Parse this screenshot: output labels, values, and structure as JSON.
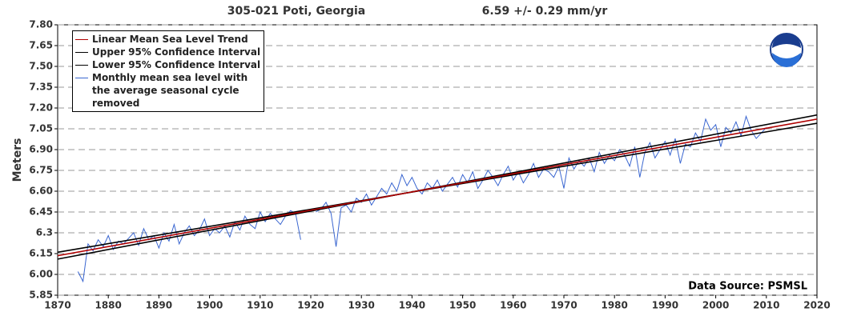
{
  "chart_data": {
    "type": "line",
    "title": "305-021 Poti, Georgia",
    "subtitle": "6.59 +/-  0.29 mm/yr",
    "y_label": "Meters",
    "annotation": "Data Source: PSMSL",
    "xlim": [
      1870,
      2020
    ],
    "xticks": [
      1870,
      1880,
      1890,
      1900,
      1910,
      1920,
      1930,
      1940,
      1950,
      1960,
      1970,
      1980,
      1990,
      2000,
      2010,
      2020
    ],
    "ylim": [
      5.85,
      7.8
    ],
    "yticks": [
      5.85,
      {
        "value": 6,
        "label": "6.00"
      },
      6.15,
      6.3,
      6.45,
      {
        "value": 6.6,
        "label": "6.60"
      },
      6.75,
      {
        "value": 6.9,
        "label": "6.90"
      },
      7.05,
      {
        "value": 7.2,
        "label": "7.20"
      },
      7.35,
      {
        "value": 7.5,
        "label": "7.50"
      },
      7.65,
      {
        "value": 7.8,
        "label": "7.80"
      }
    ],
    "grid": true,
    "series": [
      {
        "name": "Linear Mean Sea Level Trend",
        "color": "#b00000",
        "x": [
          1870,
          2020
        ],
        "values": [
          6.135,
          7.12
        ]
      },
      {
        "name": "Upper 95% Confidence Interval",
        "color": "#000000",
        "x": [
          1870,
          2020
        ],
        "values": [
          6.11,
          7.15
        ]
      },
      {
        "name": "Lower 95% Confidence Interval",
        "color": "#000000",
        "x": [
          1870,
          2020
        ],
        "values": [
          6.16,
          7.09
        ]
      },
      {
        "name": "Monthly mean sea level with the average seasonal cycle removed",
        "color": "#3a66d0",
        "x": [
          1874,
          1875,
          1876,
          1877,
          1878,
          1879,
          1880,
          1881,
          1882,
          1883,
          1884,
          1885,
          1886,
          1887,
          1888,
          1889,
          1890,
          1891,
          1892,
          1893,
          1894,
          1895,
          1896,
          1897,
          1898,
          1899,
          1900,
          1901,
          1902,
          1903,
          1904,
          1905,
          1906,
          1907,
          1908,
          1909,
          1910,
          1911,
          1912,
          1913,
          1914,
          1915,
          1916,
          1917,
          1918,
          1919,
          1921,
          1922,
          1923,
          1924,
          1925,
          1926,
          1927,
          1928,
          1929,
          1930,
          1931,
          1932,
          1933,
          1934,
          1935,
          1936,
          1937,
          1938,
          1939,
          1940,
          1941,
          1942,
          1943,
          1944,
          1945,
          1946,
          1947,
          1948,
          1949,
          1950,
          1951,
          1952,
          1953,
          1954,
          1955,
          1956,
          1957,
          1958,
          1959,
          1960,
          1961,
          1962,
          1963,
          1964,
          1965,
          1966,
          1967,
          1968,
          1969,
          1970,
          1971,
          1972,
          1973,
          1974,
          1975,
          1976,
          1977,
          1978,
          1979,
          1980,
          1981,
          1982,
          1983,
          1984,
          1985,
          1986,
          1987,
          1988,
          1989,
          1990,
          1991,
          1992,
          1993,
          1994,
          1995,
          1996,
          1997,
          1998,
          1999,
          2000,
          2001,
          2002,
          2003,
          2004,
          2005,
          2006,
          2007,
          2008,
          2009,
          2010
        ],
        "values": [
          6.02,
          5.95,
          6.22,
          6.17,
          6.25,
          6.2,
          6.28,
          6.18,
          6.24,
          6.22,
          6.26,
          6.3,
          6.21,
          6.33,
          6.25,
          6.28,
          6.19,
          6.3,
          6.24,
          6.36,
          6.22,
          6.3,
          6.35,
          6.28,
          6.32,
          6.4,
          6.28,
          6.33,
          6.3,
          6.35,
          6.27,
          6.38,
          6.32,
          6.42,
          6.36,
          6.33,
          6.45,
          6.38,
          6.44,
          6.4,
          6.36,
          6.42,
          6.46,
          6.44,
          6.25,
          null,
          6.45,
          6.47,
          6.52,
          6.44,
          6.2,
          6.48,
          6.5,
          6.45,
          6.55,
          6.52,
          6.58,
          6.5,
          6.56,
          6.62,
          6.58,
          6.66,
          6.6,
          6.72,
          6.64,
          6.7,
          6.62,
          6.58,
          6.66,
          6.62,
          6.68,
          6.6,
          6.65,
          6.7,
          6.63,
          6.72,
          6.66,
          6.74,
          6.62,
          6.68,
          6.75,
          6.7,
          6.64,
          6.72,
          6.78,
          6.68,
          6.74,
          6.66,
          6.72,
          6.8,
          6.7,
          6.76,
          6.74,
          6.7,
          6.78,
          6.62,
          6.84,
          6.76,
          6.82,
          6.78,
          6.84,
          6.74,
          6.88,
          6.8,
          6.86,
          6.82,
          6.9,
          6.86,
          6.78,
          6.92,
          6.7,
          6.88,
          6.95,
          6.84,
          6.9,
          6.96,
          6.86,
          6.98,
          6.8,
          6.94,
          6.92,
          7.02,
          6.96,
          7.12,
          7.04,
          7.08,
          6.92,
          7.06,
          7.02,
          7.1,
          7.0,
          7.14,
          7.04,
          6.98,
          7.02,
          7.06
        ]
      }
    ]
  }
}
